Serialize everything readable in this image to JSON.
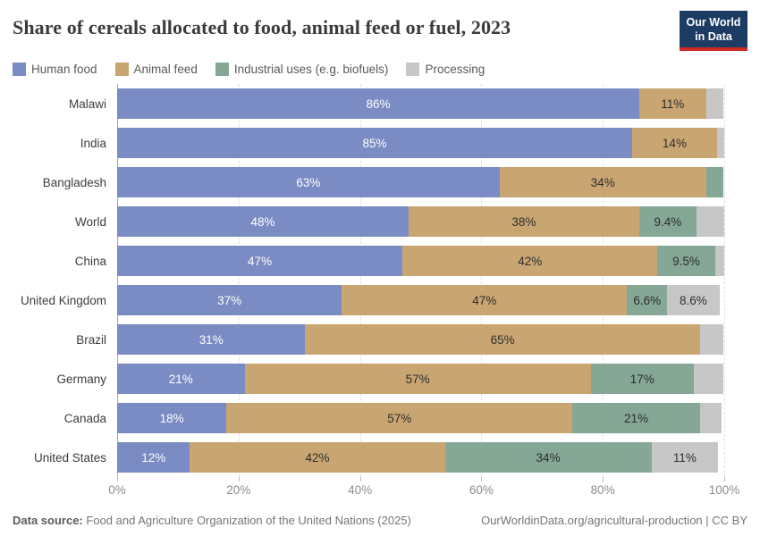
{
  "header": {
    "title": "Share of cereals allocated to food, animal feed or fuel, 2023",
    "logo": {
      "line1": "Our World",
      "line2": "in Data"
    }
  },
  "colors": {
    "human_food": "#7b8bc3",
    "animal_feed": "#c9a571",
    "industrial": "#84a796",
    "processing": "#c7c7c7",
    "logo_bg": "#1d3c63",
    "logo_red": "#cc2a22"
  },
  "legend": [
    {
      "key": "human-food",
      "label": "Human food",
      "color": "#7b8bc3"
    },
    {
      "key": "animal-feed",
      "label": "Animal feed",
      "color": "#c9a571"
    },
    {
      "key": "industrial-uses",
      "label": "Industrial uses (e.g. biofuels)",
      "color": "#84a796"
    },
    {
      "key": "processing",
      "label": "Processing",
      "color": "#c7c7c7"
    }
  ],
  "chart_data": {
    "type": "bar",
    "variant": "horizontal-stacked",
    "title": "Share of cereals allocated to food, animal feed or fuel, 2023",
    "xlim": [
      0,
      100
    ],
    "x_ticks": [
      {
        "value": 0,
        "label": "0%"
      },
      {
        "value": 20,
        "label": "20%"
      },
      {
        "value": 40,
        "label": "40%"
      },
      {
        "value": 60,
        "label": "60%"
      },
      {
        "value": 80,
        "label": "80%"
      },
      {
        "value": 100,
        "label": "100%"
      }
    ],
    "grid": "vertical-dashed",
    "legend_position": "top",
    "categories": [
      "Malawi",
      "India",
      "Bangladesh",
      "World",
      "China",
      "United Kingdom",
      "Brazil",
      "Germany",
      "Canada",
      "United States"
    ],
    "series": [
      {
        "key": "human-food",
        "name": "Human food",
        "color": "#7b8bc3",
        "label_color": "#ffffff",
        "values": [
          86,
          85,
          63,
          48,
          47,
          37,
          31,
          21,
          18,
          12
        ],
        "labels": [
          "86%",
          "85%",
          "63%",
          "48%",
          "47%",
          "37%",
          "31%",
          "21%",
          "18%",
          "12%"
        ]
      },
      {
        "key": "animal-feed",
        "name": "Animal feed",
        "color": "#c9a571",
        "label_color": "#2e2e2e",
        "values": [
          11,
          14,
          34,
          38,
          42,
          47,
          65,
          57,
          57,
          42
        ],
        "labels": [
          "11%",
          "14%",
          "34%",
          "38%",
          "42%",
          "47%",
          "65%",
          "57%",
          "57%",
          "42%"
        ]
      },
      {
        "key": "industrial-uses",
        "name": "Industrial uses (e.g. biofuels)",
        "color": "#84a796",
        "label_color": "#2e2e2e",
        "values": [
          0,
          0,
          2.8,
          9.4,
          9.5,
          6.6,
          0,
          17,
          21,
          34
        ],
        "labels": [
          "",
          "",
          "",
          "9.4%",
          "9.5%",
          "6.6%",
          "",
          "17%",
          "21%",
          "34%"
        ]
      },
      {
        "key": "processing",
        "name": "Processing",
        "color": "#c7c7c7",
        "label_color": "#2e2e2e",
        "values": [
          2.9,
          1.2,
          0,
          4.6,
          1.5,
          8.6,
          3.8,
          4.8,
          3.5,
          11
        ],
        "labels": [
          "",
          "",
          "",
          "",
          "",
          "8.6%",
          "",
          "",
          "",
          "11%"
        ]
      }
    ]
  },
  "footer": {
    "datasource_label": "Data source:",
    "datasource_text": " Food and Agriculture Organization of the United Nations (2025)",
    "credit": "OurWorldinData.org/agricultural-production | CC BY"
  }
}
